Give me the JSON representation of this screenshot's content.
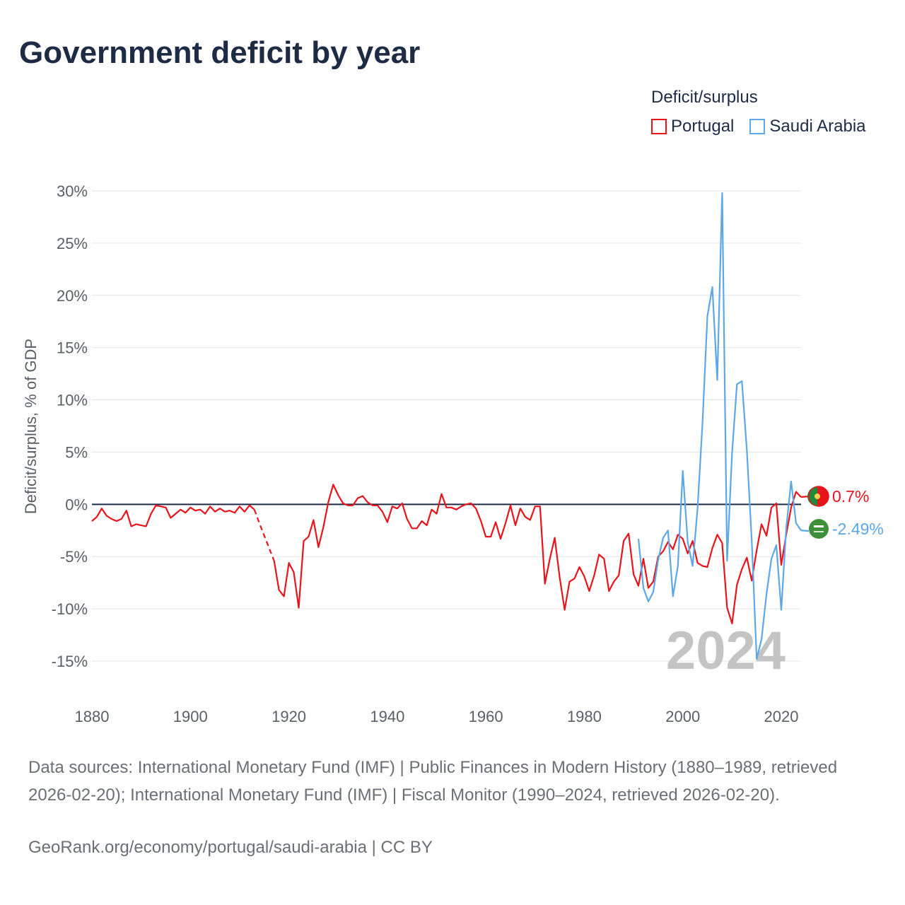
{
  "title": "Government deficit by year",
  "legend": {
    "title": "Deficit/surplus",
    "items": [
      {
        "name": "Portugal",
        "color": "#e8141c"
      },
      {
        "name": "Saudi Arabia",
        "color": "#5ea7e6"
      }
    ]
  },
  "chart_data": {
    "type": "line",
    "title": "Government deficit by year",
    "xlabel": "",
    "ylabel": "Deficit/surplus, % of GDP",
    "xlim": [
      1880,
      2024
    ],
    "ylim": [
      -18,
      30
    ],
    "x_ticks": [
      1880,
      1900,
      1920,
      1940,
      1960,
      1980,
      2000,
      2020
    ],
    "y_ticks": [
      30,
      25,
      20,
      15,
      10,
      5,
      0,
      -5,
      -10,
      -15
    ],
    "y_tick_labels": [
      "30%",
      "25%",
      "20%",
      "15%",
      "10%",
      "5%",
      "0%",
      "-5%",
      "-10%",
      "-15%"
    ],
    "year_watermark": "2024",
    "series": [
      {
        "name": "Portugal",
        "color": "#e8141c",
        "end_label": "0.7%",
        "gap": [
          1913,
          1917
        ],
        "points": [
          [
            1880,
            -1.6
          ],
          [
            1881,
            -1.2
          ],
          [
            1882,
            -0.4
          ],
          [
            1883,
            -1.1
          ],
          [
            1884,
            -1.4
          ],
          [
            1885,
            -1.6
          ],
          [
            1886,
            -1.4
          ],
          [
            1887,
            -0.6
          ],
          [
            1888,
            -2.1
          ],
          [
            1889,
            -1.9
          ],
          [
            1890,
            -2.0
          ],
          [
            1891,
            -2.1
          ],
          [
            1892,
            -0.9
          ],
          [
            1893,
            -0.1
          ],
          [
            1894,
            -0.2
          ],
          [
            1895,
            -0.3
          ],
          [
            1896,
            -1.3
          ],
          [
            1897,
            -0.9
          ],
          [
            1898,
            -0.5
          ],
          [
            1899,
            -0.8
          ],
          [
            1900,
            -0.3
          ],
          [
            1901,
            -0.6
          ],
          [
            1902,
            -0.5
          ],
          [
            1903,
            -0.9
          ],
          [
            1904,
            -0.2
          ],
          [
            1905,
            -0.7
          ],
          [
            1906,
            -0.4
          ],
          [
            1907,
            -0.7
          ],
          [
            1908,
            -0.6
          ],
          [
            1909,
            -0.8
          ],
          [
            1910,
            -0.2
          ],
          [
            1911,
            -0.7
          ],
          [
            1912,
            -0.1
          ],
          [
            1913,
            -0.5
          ],
          [
            1914,
            -1.8
          ],
          [
            1915,
            -3.0
          ],
          [
            1916,
            -4.2
          ],
          [
            1917,
            -5.4
          ],
          [
            1918,
            -8.2
          ],
          [
            1919,
            -8.8
          ],
          [
            1920,
            -5.6
          ],
          [
            1921,
            -6.5
          ],
          [
            1922,
            -9.9
          ],
          [
            1923,
            -3.5
          ],
          [
            1924,
            -3.1
          ],
          [
            1925,
            -1.5
          ],
          [
            1926,
            -4.1
          ],
          [
            1927,
            -2.2
          ],
          [
            1928,
            0.2
          ],
          [
            1929,
            1.9
          ],
          [
            1930,
            0.9
          ],
          [
            1931,
            0.1
          ],
          [
            1932,
            -0.1
          ],
          [
            1933,
            -0.1
          ],
          [
            1934,
            0.6
          ],
          [
            1935,
            0.8
          ],
          [
            1936,
            0.2
          ],
          [
            1937,
            -0.1
          ],
          [
            1938,
            -0.1
          ],
          [
            1939,
            -0.7
          ],
          [
            1940,
            -1.7
          ],
          [
            1941,
            -0.2
          ],
          [
            1942,
            -0.4
          ],
          [
            1943,
            0.1
          ],
          [
            1944,
            -1.4
          ],
          [
            1945,
            -2.3
          ],
          [
            1946,
            -2.3
          ],
          [
            1947,
            -1.6
          ],
          [
            1948,
            -2.0
          ],
          [
            1949,
            -0.5
          ],
          [
            1950,
            -0.9
          ],
          [
            1951,
            1.0
          ],
          [
            1952,
            -0.3
          ],
          [
            1953,
            -0.3
          ],
          [
            1954,
            -0.5
          ],
          [
            1955,
            -0.2
          ],
          [
            1956,
            0.0
          ],
          [
            1957,
            0.1
          ],
          [
            1958,
            -0.4
          ],
          [
            1959,
            -1.6
          ],
          [
            1960,
            -3.1
          ],
          [
            1961,
            -3.1
          ],
          [
            1962,
            -1.7
          ],
          [
            1963,
            -3.3
          ],
          [
            1964,
            -1.8
          ],
          [
            1965,
            -0.1
          ],
          [
            1966,
            -2.0
          ],
          [
            1967,
            -0.4
          ],
          [
            1968,
            -1.2
          ],
          [
            1969,
            -1.5
          ],
          [
            1970,
            -0.2
          ],
          [
            1971,
            -0.2
          ],
          [
            1972,
            -7.6
          ],
          [
            1973,
            -5.2
          ],
          [
            1974,
            -3.2
          ],
          [
            1975,
            -7.0
          ],
          [
            1976,
            -10.1
          ],
          [
            1977,
            -7.4
          ],
          [
            1978,
            -7.1
          ],
          [
            1979,
            -6.0
          ],
          [
            1980,
            -6.9
          ],
          [
            1981,
            -8.3
          ],
          [
            1982,
            -6.8
          ],
          [
            1983,
            -4.8
          ],
          [
            1984,
            -5.2
          ],
          [
            1985,
            -8.3
          ],
          [
            1986,
            -7.4
          ],
          [
            1987,
            -6.8
          ],
          [
            1988,
            -3.5
          ],
          [
            1989,
            -2.8
          ],
          [
            1990,
            -6.7
          ],
          [
            1991,
            -7.8
          ],
          [
            1992,
            -5.2
          ],
          [
            1993,
            -8.0
          ],
          [
            1994,
            -7.4
          ],
          [
            1995,
            -5.0
          ],
          [
            1996,
            -4.5
          ],
          [
            1997,
            -3.6
          ],
          [
            1998,
            -4.3
          ],
          [
            1999,
            -2.9
          ],
          [
            2000,
            -3.3
          ],
          [
            2001,
            -4.7
          ],
          [
            2002,
            -3.5
          ],
          [
            2003,
            -5.6
          ],
          [
            2004,
            -5.9
          ],
          [
            2005,
            -6.0
          ],
          [
            2006,
            -4.2
          ],
          [
            2007,
            -2.9
          ],
          [
            2008,
            -3.7
          ],
          [
            2009,
            -9.9
          ],
          [
            2010,
            -11.4
          ],
          [
            2011,
            -7.7
          ],
          [
            2012,
            -6.2
          ],
          [
            2013,
            -5.1
          ],
          [
            2014,
            -7.3
          ],
          [
            2015,
            -4.4
          ],
          [
            2016,
            -1.9
          ],
          [
            2017,
            -3.0
          ],
          [
            2018,
            -0.3
          ],
          [
            2019,
            0.1
          ],
          [
            2020,
            -5.8
          ],
          [
            2021,
            -2.9
          ],
          [
            2022,
            -0.3
          ],
          [
            2023,
            1.2
          ],
          [
            2024,
            0.7
          ]
        ]
      },
      {
        "name": "Saudi Arabia",
        "color": "#5ea7e6",
        "end_label": "-2.49%",
        "points": [
          [
            1991,
            -3.3
          ],
          [
            1992,
            -8.0
          ],
          [
            1993,
            -9.3
          ],
          [
            1994,
            -8.4
          ],
          [
            1995,
            -5.3
          ],
          [
            1996,
            -3.2
          ],
          [
            1997,
            -2.5
          ],
          [
            1998,
            -8.8
          ],
          [
            1999,
            -5.9
          ],
          [
            2000,
            3.2
          ],
          [
            2001,
            -3.6
          ],
          [
            2002,
            -5.9
          ],
          [
            2003,
            -0.4
          ],
          [
            2004,
            7.8
          ],
          [
            2005,
            18.0
          ],
          [
            2006,
            20.8
          ],
          [
            2007,
            11.9
          ],
          [
            2008,
            29.8
          ],
          [
            2009,
            -5.4
          ],
          [
            2010,
            4.9
          ],
          [
            2011,
            11.5
          ],
          [
            2012,
            11.8
          ],
          [
            2013,
            5.2
          ],
          [
            2014,
            -3.4
          ],
          [
            2015,
            -14.8
          ],
          [
            2016,
            -12.9
          ],
          [
            2017,
            -8.6
          ],
          [
            2018,
            -5.2
          ],
          [
            2019,
            -3.9
          ],
          [
            2020,
            -10.1
          ],
          [
            2021,
            -2.3
          ],
          [
            2022,
            2.2
          ],
          [
            2023,
            -1.8
          ],
          [
            2024,
            -2.49
          ]
        ]
      }
    ]
  },
  "footer": {
    "source": "Data sources: International Monetary Fund (IMF) | Public Finances in Modern History (1880–1989, retrieved 2026-02-20); International Monetary Fund (IMF) | Fiscal Monitor (1990–2024, retrieved 2026-02-20).",
    "credit": "GeoRank.org/economy/portugal/saudi-arabia | CC BY"
  }
}
